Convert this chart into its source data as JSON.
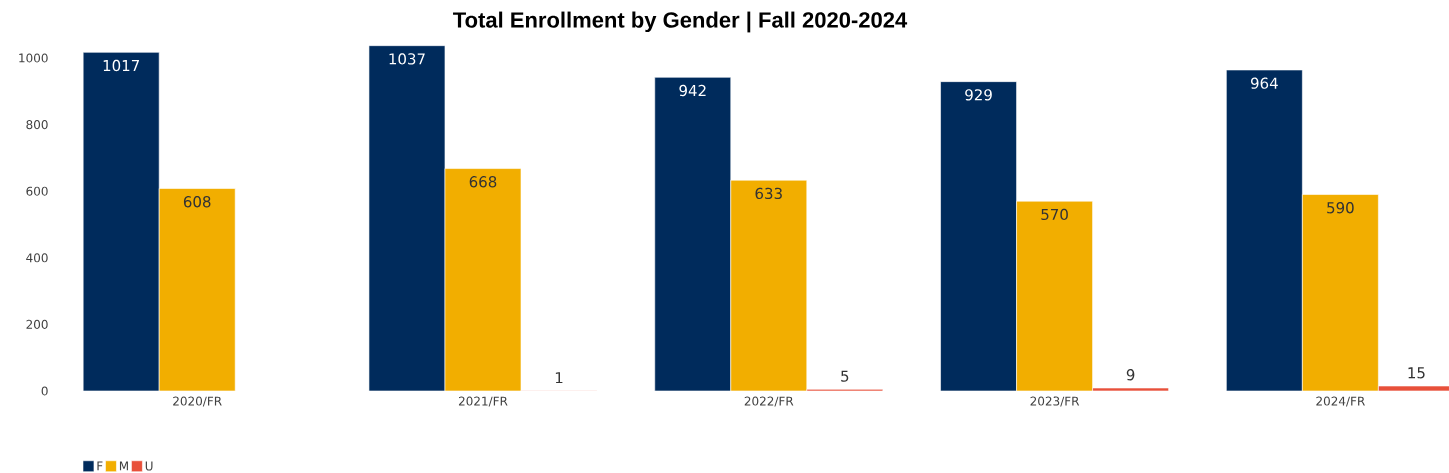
{
  "chart_data": {
    "type": "bar",
    "title": "Total Enrollment by Gender | Fall 2020-2024",
    "categories": [
      "2020/FR",
      "2021/FR",
      "2022/FR",
      "2023/FR",
      "2024/FR"
    ],
    "series": [
      {
        "name": "F",
        "color": "#002b5c",
        "values": [
          1017,
          1037,
          942,
          929,
          964
        ]
      },
      {
        "name": "M",
        "color": "#f2ae00",
        "values": [
          608,
          668,
          633,
          570,
          590
        ]
      },
      {
        "name": "U",
        "color": "#e8503a",
        "values": [
          null,
          1,
          5,
          9,
          15
        ]
      }
    ],
    "ylim": [
      0,
      1050
    ],
    "yticks": [
      0,
      200,
      400,
      600,
      800,
      1000
    ],
    "data_labels": true,
    "legend": "bottom left",
    "grid": false
  }
}
